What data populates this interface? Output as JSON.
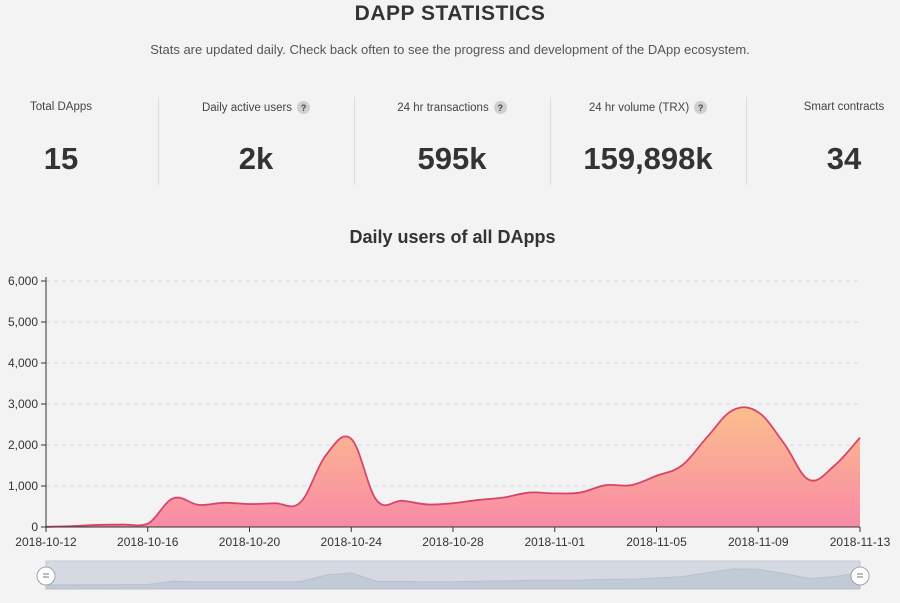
{
  "header": {
    "title": "DAPP STATISTICS",
    "subtitle": "Stats are updated daily. Check back often to see the progress and development of the DApp ecosystem."
  },
  "stats": [
    {
      "label": "Total DApps",
      "value": "15",
      "help": false
    },
    {
      "label": "Daily active users",
      "value": "2k",
      "help": true
    },
    {
      "label": "24 hr transactions",
      "value": "595k",
      "help": true
    },
    {
      "label": "24 hr volume (TRX)",
      "value": "159,898k",
      "help": true
    },
    {
      "label": "Smart contracts",
      "value": "34",
      "help": false
    }
  ],
  "help_icon_glyph": "?",
  "colors": {
    "line": "#d9456a",
    "area_top": "#fbbf8c",
    "area_bottom": "#f98aa6",
    "zoom_bg": "#d5dae2",
    "zoom_fill": "#c2cad6"
  },
  "chart_data": {
    "type": "area",
    "title": "Daily users of all DApps",
    "xlabel": "",
    "ylabel": "",
    "ylim": [
      0,
      6000
    ],
    "yticks": [
      "0",
      "1,000",
      "2,000",
      "3,000",
      "4,000",
      "5,000",
      "6,000"
    ],
    "ytick_values": [
      0,
      1000,
      2000,
      3000,
      4000,
      5000,
      6000
    ],
    "xtick_labels": [
      "2018-10-12",
      "2018-10-16",
      "2018-10-20",
      "2018-10-24",
      "2018-10-28",
      "2018-11-01",
      "2018-11-05",
      "2018-11-09",
      "2018-11-13"
    ],
    "xtick_indices": [
      0,
      4,
      8,
      12,
      16,
      20,
      24,
      28,
      32
    ],
    "grid": "horizontal dashed",
    "series": [
      {
        "name": "Daily users",
        "dates": [
          "2018-10-12",
          "2018-10-13",
          "2018-10-14",
          "2018-10-15",
          "2018-10-16",
          "2018-10-17",
          "2018-10-18",
          "2018-10-19",
          "2018-10-20",
          "2018-10-21",
          "2018-10-22",
          "2018-10-23",
          "2018-10-24",
          "2018-10-25",
          "2018-10-26",
          "2018-10-27",
          "2018-10-28",
          "2018-10-29",
          "2018-10-30",
          "2018-10-31",
          "2018-11-01",
          "2018-11-02",
          "2018-11-03",
          "2018-11-04",
          "2018-11-05",
          "2018-11-06",
          "2018-11-07",
          "2018-11-08",
          "2018-11-09",
          "2018-11-10",
          "2018-11-11",
          "2018-11-12",
          "2018-11-13"
        ],
        "values": [
          5,
          20,
          50,
          60,
          80,
          700,
          540,
          590,
          560,
          580,
          600,
          1750,
          2150,
          650,
          640,
          550,
          580,
          660,
          720,
          840,
          820,
          840,
          1020,
          1020,
          1250,
          1500,
          2200,
          2850,
          2800,
          2050,
          1150,
          1500,
          2180
        ]
      }
    ],
    "zoom_slider": {
      "start": "2018-10-12",
      "end": "2018-11-13"
    }
  }
}
